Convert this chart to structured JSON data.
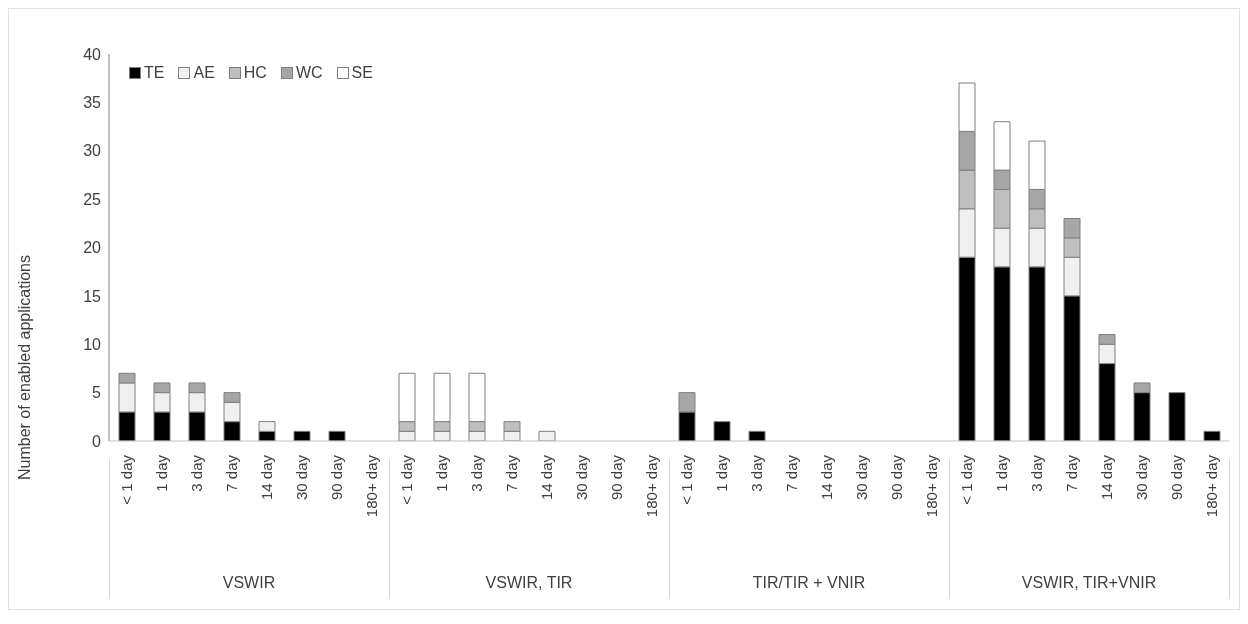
{
  "chart_data": {
    "type": "bar",
    "stacked": true,
    "ylabel": "Number of enabled applications",
    "categories": [
      "< 1 day",
      "1 day",
      "3 day",
      "7 day",
      "14 day",
      "30 day",
      "90 day",
      "180+ day",
      "< 1 day",
      "1 day",
      "3 day",
      "7 day",
      "14 day",
      "30 day",
      "90 day",
      "180+ day",
      "< 1 day",
      "1 day",
      "3 day",
      "7 day",
      "14 day",
      "30 day",
      "90 day",
      "180+ day",
      "< 1 day",
      "1 day",
      "3 day",
      "7 day",
      "14 day",
      "30 day",
      "90 day",
      "180+ day"
    ],
    "annotations": [
      "VSWIR",
      "VSWIR, TIR",
      "TIR/TIR + VNIR",
      "VSWIR, TIR+VNIR"
    ],
    "series": [
      {
        "name": "TE",
        "color": "#000000",
        "values": [
          3,
          3,
          3,
          2,
          1,
          1,
          1,
          0,
          0,
          0,
          0,
          0,
          0,
          0,
          0,
          0,
          3,
          2,
          1,
          0,
          0,
          0,
          0,
          0,
          19,
          18,
          18,
          15,
          8,
          5,
          5,
          1
        ]
      },
      {
        "name": "AE",
        "color": "#f0f0f0",
        "values": [
          3,
          2,
          2,
          2,
          1,
          0,
          0,
          0,
          1,
          1,
          1,
          1,
          1,
          0,
          0,
          0,
          0,
          0,
          0,
          0,
          0,
          0,
          0,
          0,
          5,
          4,
          4,
          4,
          2,
          0,
          0,
          0
        ]
      },
      {
        "name": "HC",
        "color": "#bfbfbf",
        "values": [
          0,
          0,
          0,
          0,
          0,
          0,
          0,
          0,
          1,
          1,
          1,
          1,
          0,
          0,
          0,
          0,
          0,
          0,
          0,
          0,
          0,
          0,
          0,
          0,
          4,
          4,
          2,
          2,
          0,
          0,
          0,
          0
        ]
      },
      {
        "name": "WC",
        "color": "#a6a6a6",
        "values": [
          1,
          1,
          1,
          1,
          0,
          0,
          0,
          0,
          0,
          0,
          0,
          0,
          0,
          0,
          0,
          0,
          2,
          0,
          0,
          0,
          0,
          0,
          0,
          0,
          4,
          2,
          2,
          2,
          1,
          1,
          0,
          0
        ]
      },
      {
        "name": "SE",
        "color": "#ffffff",
        "values": [
          0,
          0,
          0,
          0,
          0,
          0,
          0,
          0,
          5,
          5,
          5,
          0,
          0,
          0,
          0,
          0,
          0,
          0,
          0,
          0,
          0,
          0,
          0,
          0,
          5,
          5,
          5,
          0,
          0,
          0,
          0,
          0
        ]
      }
    ],
    "ylim": [
      0,
      40
    ],
    "yticks": [
      0,
      5,
      10,
      15,
      20,
      25,
      30,
      35,
      40
    ],
    "legend": "top left"
  }
}
